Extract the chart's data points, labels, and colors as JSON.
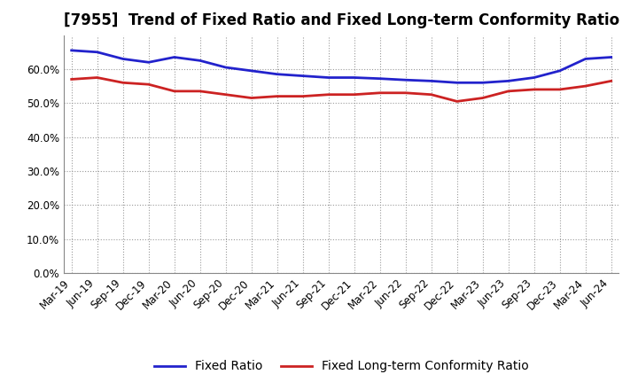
{
  "title": "[7955]  Trend of Fixed Ratio and Fixed Long-term Conformity Ratio",
  "x_labels": [
    "Mar-19",
    "Jun-19",
    "Sep-19",
    "Dec-19",
    "Mar-20",
    "Jun-20",
    "Sep-20",
    "Dec-20",
    "Mar-21",
    "Jun-21",
    "Sep-21",
    "Dec-21",
    "Mar-22",
    "Jun-22",
    "Sep-22",
    "Dec-22",
    "Mar-23",
    "Jun-23",
    "Sep-23",
    "Dec-23",
    "Mar-24",
    "Jun-24"
  ],
  "fixed_ratio": [
    65.5,
    65.0,
    63.0,
    62.0,
    63.5,
    62.5,
    60.5,
    59.5,
    58.5,
    58.0,
    57.5,
    57.5,
    57.2,
    56.8,
    56.5,
    56.0,
    56.0,
    56.5,
    57.5,
    59.5,
    63.0,
    63.5
  ],
  "fixed_lt_ratio": [
    57.0,
    57.5,
    56.0,
    55.5,
    53.5,
    53.5,
    52.5,
    51.5,
    52.0,
    52.0,
    52.5,
    52.5,
    53.0,
    53.0,
    52.5,
    50.5,
    51.5,
    53.5,
    54.0,
    54.0,
    55.0,
    56.5
  ],
  "fixed_ratio_color": "#2222cc",
  "fixed_lt_ratio_color": "#cc2222",
  "background_color": "#ffffff",
  "plot_bg_color": "#ffffff",
  "grid_color": "#999999",
  "ylim": [
    0,
    70
  ],
  "yticks": [
    0,
    10,
    20,
    30,
    40,
    50,
    60
  ],
  "legend_fixed_ratio": "Fixed Ratio",
  "legend_fixed_lt_ratio": "Fixed Long-term Conformity Ratio",
  "title_fontsize": 12,
  "tick_fontsize": 8.5,
  "legend_fontsize": 10,
  "line_width": 2.0
}
